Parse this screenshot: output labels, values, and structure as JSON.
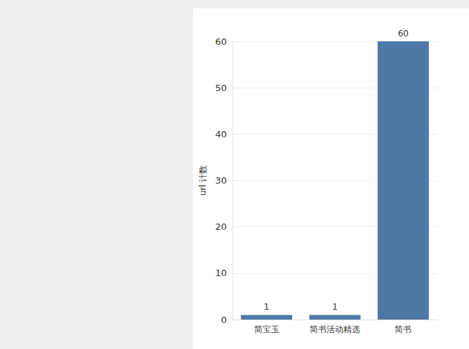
{
  "chart_data": {
    "type": "bar",
    "y_label": "url 计数",
    "categories": [
      "简宝玉",
      "简书活动精选",
      "简书"
    ],
    "values": [
      1,
      1,
      60
    ],
    "color": "#4e79a7",
    "ylim": [
      0,
      60
    ],
    "yticks": [
      0,
      10,
      20,
      30,
      40,
      50,
      60
    ],
    "grid": true,
    "data_labels": true
  }
}
